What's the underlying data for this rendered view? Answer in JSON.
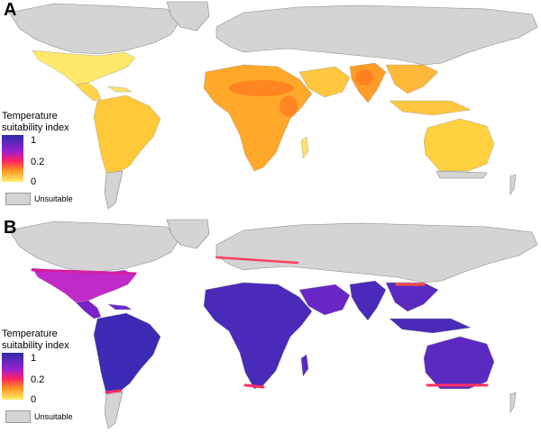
{
  "panels": [
    {
      "letter": "A",
      "legend_title_line1": "Temperature",
      "legend_title_line2": "suitability index",
      "ticks": [
        "1",
        "0.2",
        "0"
      ],
      "unsuitable_label": "Unsuitable",
      "scale": "predominantly low suitability (yellow/orange) across tropics"
    },
    {
      "letter": "B",
      "legend_title_line1": "Temperature",
      "legend_title_line2": "suitability index",
      "ticks": [
        "1",
        "0.2",
        "0"
      ],
      "unsuitable_label": "Unsuitable",
      "scale": "predominantly high suitability (blue/purple) across tropics"
    }
  ],
  "colors": {
    "unsuitable": "#d4d4d4",
    "high": "#2c2ca8",
    "mid_high": "#7a1fd0",
    "mid": "#d41fa0",
    "low_mid": "#ff3060",
    "orange": "#ff8c1a",
    "low": "#ffe74a"
  }
}
